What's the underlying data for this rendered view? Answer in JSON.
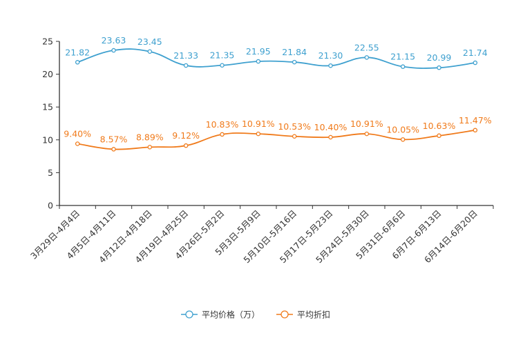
{
  "chart_data": {
    "type": "line",
    "categories": [
      "3月29日-4月4日",
      "4月5日-4月11日",
      "4月12日-4月18日",
      "4月19日-4月25日",
      "4月26日-5月2日",
      "5月3日-5月9日",
      "5月10日-5月16日",
      "5月17日-5月23日",
      "5月24日-5月30日",
      "5月31日-6月6日",
      "6月7日-6月13日",
      "6月14日-6月20日"
    ],
    "series": [
      {
        "name": "平均价格（万）",
        "color": "#3ea0cf",
        "values": [
          21.82,
          23.63,
          23.45,
          21.33,
          21.35,
          21.95,
          21.84,
          21.3,
          22.55,
          21.15,
          20.99,
          21.74
        ],
        "labels": [
          "21.82",
          "23.63",
          "23.45",
          "21.33",
          "21.35",
          "21.95",
          "21.84",
          "21.30",
          "22.55",
          "21.15",
          "20.99",
          "21.74"
        ]
      },
      {
        "name": "平均折扣",
        "color": "#f07a1a",
        "values": [
          9.4,
          8.57,
          8.89,
          9.12,
          10.83,
          10.91,
          10.53,
          10.4,
          10.91,
          10.05,
          10.63,
          11.47
        ],
        "labels": [
          "9.40%",
          "8.57%",
          "8.89%",
          "9.12%",
          "10.83%",
          "10.91%",
          "10.53%",
          "10.40%",
          "10.91%",
          "10.05%",
          "10.63%",
          "11.47%"
        ]
      }
    ],
    "y_ticks": [
      "0",
      "5",
      "10",
      "15",
      "20",
      "25"
    ],
    "ylim": [
      0,
      25
    ],
    "title": "",
    "xlabel": "",
    "ylabel": "",
    "legend_position": "bottom-center"
  }
}
